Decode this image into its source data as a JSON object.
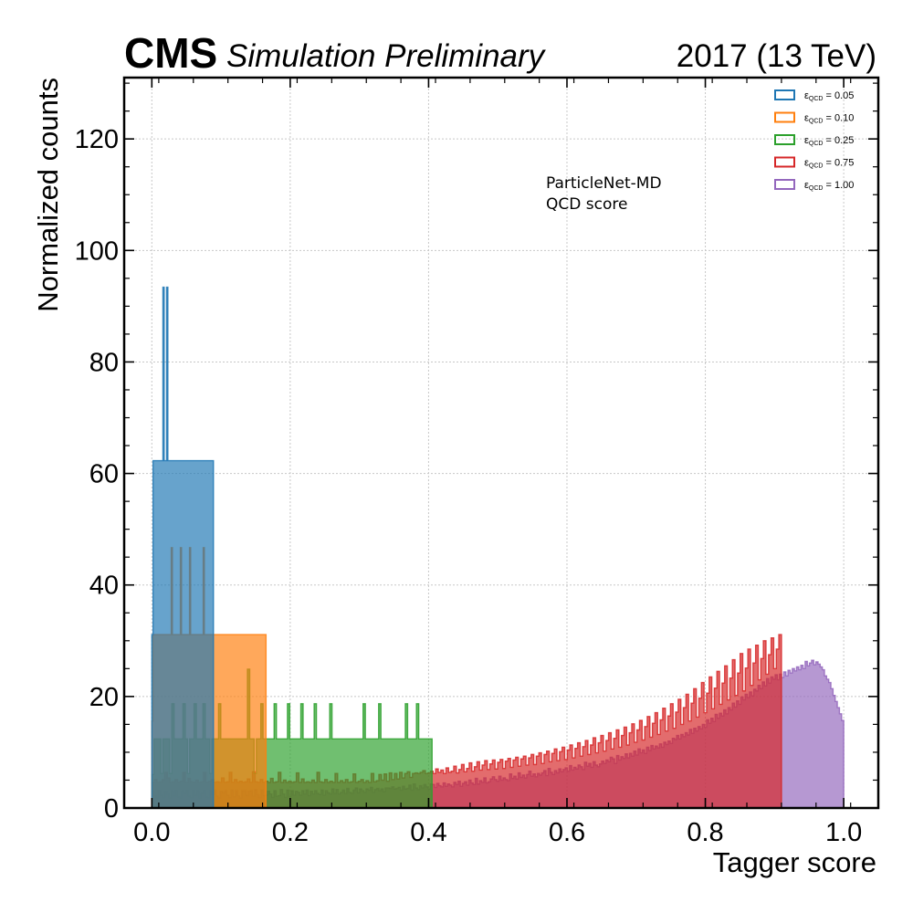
{
  "header": {
    "experiment": "CMS",
    "status": "Simulation Preliminary",
    "lumi": "2017 (13 TeV)"
  },
  "annotation": {
    "line1": "ParticleNet-MD",
    "line2": "QCD score"
  },
  "chart_data": {
    "type": "histogram",
    "xlabel": "Tagger score",
    "ylabel": "Normalized counts",
    "xlim": [
      -0.04,
      1.05
    ],
    "ylim": [
      0,
      131
    ],
    "xticks": [
      0.0,
      0.2,
      0.4,
      0.6,
      0.8,
      1.0
    ],
    "xtick_labels": [
      "0.0",
      "0.2",
      "0.4",
      "0.6",
      "0.8",
      "1.0"
    ],
    "yticks": [
      0,
      20,
      40,
      60,
      80,
      100,
      120
    ],
    "ytick_labels": [
      "0",
      "20",
      "40",
      "60",
      "80",
      "100",
      "120"
    ],
    "grid": true,
    "legend_position": "top-right",
    "bin_width": 0.0033,
    "series": [
      {
        "legend_symbol": "ε",
        "legend_sub": "QCD",
        "legend_value": " = 1.00",
        "color": "#9467bd",
        "x_range": [
          0.0,
          1.0
        ],
        "values": [
          3.0,
          2.2,
          1.8,
          3.2,
          2.3,
          1.9,
          3.0,
          2.5,
          1.8,
          3.1,
          2.2,
          3.2,
          2.0,
          1.8,
          3.1,
          2.6,
          3.2,
          2.1,
          1.9,
          3.2,
          2.3,
          3.1,
          1.8,
          2.6,
          3.2,
          2.0,
          1.9,
          3.1,
          2.4,
          3.2,
          2.1,
          1.8,
          3.0,
          2.7,
          3.1,
          2.3,
          1.9,
          3.2,
          2.0,
          3.1,
          2.2,
          1.8,
          3.1,
          3.1,
          2.2,
          3.0,
          3.1,
          2.1,
          3.3,
          2.4,
          1.9,
          3.2,
          2.2,
          2.3,
          3.0,
          2.5,
          1.9,
          3.1,
          2.1,
          2.2,
          3.3,
          2.5,
          1.9,
          3.2,
          2.1,
          3.1,
          2.3,
          3.0,
          2.8,
          2.3,
          3.1,
          2.5,
          3.2,
          2.2,
          3.0,
          2.5,
          3.1,
          2.6,
          2.4,
          3.2,
          2.3,
          3.1,
          2.7,
          2.5,
          3.4,
          2.6,
          3.3,
          2.5,
          2.8,
          3.2,
          2.6,
          3.5,
          2.8,
          2.6,
          3.2,
          3.6,
          2.7,
          3.4,
          3.1,
          2.8,
          3.4,
          3.2,
          3.7,
          2.8,
          3.3,
          3.5,
          3.1,
          3.4,
          2.9,
          3.6,
          3.6,
          3.5,
          3.8,
          3.4,
          3.5,
          3.7,
          3.2,
          3.9,
          3.4,
          3.5,
          4.1,
          3.2,
          4.3,
          3.6,
          3.3,
          4.0,
          3.6,
          4.2,
          3.8,
          3.4,
          4.3,
          4.2,
          3.7,
          4.4,
          4.0,
          3.8,
          4.5,
          3.9,
          4.3,
          4.1,
          3.8,
          4.6,
          4.2,
          4.8,
          3.9,
          4.4,
          4.7,
          4.1,
          5.0,
          4.5,
          4.2,
          5.3,
          4.3,
          4.9,
          4.6,
          5.4,
          4.5,
          4.7,
          5.2,
          5.6,
          5.1,
          4.8,
          5.7,
          5.0,
          5.4,
          5.1,
          4.9,
          6.1,
          5.3,
          5.7,
          5.2,
          6.3,
          5.5,
          5.9,
          5.4,
          6.0,
          6.6,
          5.7,
          6.1,
          5.6,
          6.2,
          5.9,
          6.3,
          6.7,
          5.8,
          7.1,
          6.4,
          6.0,
          6.7,
          6.3,
          7.0,
          6.5,
          6.9,
          7.2,
          6.6,
          7.6,
          6.8,
          7.3,
          7.0,
          7.7,
          7.4,
          6.9,
          8.2,
          7.5,
          8.0,
          7.3,
          8.3,
          7.7,
          7.4,
          7.9,
          8.4,
          8.0,
          8.6,
          8.3,
          9.1,
          8.8,
          8.0,
          9.4,
          8.6,
          9.2,
          8.9,
          9.7,
          9.0,
          9.8,
          9.3,
          10.2,
          9.5,
          10.6,
          9.9,
          10.4,
          9.8,
          10.9,
          10.3,
          11.2,
          10.6,
          11.1,
          10.8,
          11.5,
          10.9,
          11.8,
          11.4,
          12.0,
          11.6,
          12.5,
          12.3,
          13.0,
          12.4,
          13.2,
          12.8,
          13.5,
          13.1,
          14.1,
          13.4,
          14.3,
          13.8,
          14.6,
          14.2,
          15.0,
          14.5,
          15.8,
          15.2,
          16.1,
          15.5,
          16.8,
          16.1,
          17.0,
          16.5,
          17.6,
          16.9,
          18.0,
          17.6,
          18.8,
          18.1,
          19.2,
          18.6,
          19.9,
          19.4,
          20.4,
          19.8,
          20.8,
          20.1,
          21.3,
          21.0,
          22.0,
          21.4,
          22.6,
          21.9,
          23.2,
          22.4,
          23.5,
          23.1,
          23.9,
          23.0,
          24.0,
          23.4,
          24.4,
          23.7,
          24.7,
          24.2,
          25.0,
          24.6,
          25.3,
          24.8,
          25.6,
          25.0,
          26.3,
          25.5,
          26.0,
          26.5,
          25.7,
          26.2,
          25.8,
          25.3,
          24.8,
          23.7,
          23.1,
          22.5,
          21.4,
          20.2,
          19.1,
          18.0,
          16.9,
          15.7
        ]
      },
      {
        "legend_symbol": "ε",
        "legend_sub": "QCD",
        "legend_value": " = 0.75",
        "color": "#d62728",
        "x_range": [
          0.0,
          0.91
        ],
        "values": [
          4.6,
          5.1,
          4.6,
          4.7,
          5.1,
          6.4,
          5.4,
          4.6,
          4.7,
          5.1,
          4.6,
          4.8,
          6.4,
          4.6,
          5.3,
          4.7,
          4.6,
          5.0,
          4.6,
          4.7,
          6.4,
          4.6,
          4.8,
          5.1,
          4.6,
          4.7,
          4.6,
          5.4,
          4.6,
          4.7,
          6.4,
          4.6,
          5.1,
          4.6,
          4.8,
          4.6,
          4.7,
          5.2,
          4.6,
          6.5,
          4.7,
          4.6,
          5.1,
          4.6,
          4.8,
          4.6,
          5.3,
          4.6,
          4.7,
          6.4,
          4.6,
          5.0,
          4.6,
          4.8,
          4.6,
          4.7,
          6.3,
          4.6,
          5.2,
          4.6,
          4.7,
          4.6,
          5.0,
          4.6,
          6.4,
          4.7,
          4.6,
          5.1,
          4.6,
          4.8,
          4.6,
          6.2,
          4.6,
          4.9,
          4.6,
          5.1,
          4.6,
          4.7,
          6.1,
          4.6,
          4.8,
          5.1,
          4.6,
          4.9,
          4.6,
          6.2,
          4.7,
          4.9,
          6.0,
          5.0,
          6.1,
          4.8,
          6.3,
          5.1,
          6.2,
          5.2,
          6.4,
          5.4,
          6.2,
          6.5,
          5.5,
          6.2,
          6.3,
          6.2,
          6.4,
          6.7,
          6.2,
          6.3,
          6.6,
          6.2,
          7.0,
          6.4,
          6.8,
          6.2,
          7.2,
          6.4,
          6.6,
          7.5,
          6.3,
          6.9,
          7.8,
          6.5,
          7.1,
          8.1,
          6.6,
          7.4,
          8.3,
          6.8,
          7.7,
          8.5,
          6.9,
          7.9,
          8.6,
          7.0,
          8.2,
          8.7,
          7.1,
          8.4,
          8.9,
          7.3,
          8.6,
          9.1,
          7.5,
          8.8,
          9.3,
          7.7,
          9.0,
          9.6,
          7.8,
          9.3,
          9.9,
          8.0,
          9.6,
          10.2,
          8.3,
          9.8,
          10.6,
          8.5,
          10.1,
          10.9,
          8.7,
          10.4,
          11.3,
          9.0,
          10.7,
          11.7,
          9.3,
          11.0,
          12.1,
          9.6,
          11.3,
          12.6,
          9.9,
          11.7,
          13.0,
          10.2,
          12.1,
          13.5,
          10.6,
          12.5,
          14.0,
          10.9,
          13.0,
          14.5,
          11.3,
          13.5,
          15.1,
          11.8,
          14.0,
          15.7,
          12.2,
          14.6,
          16.4,
          12.7,
          15.2,
          17.1,
          13.2,
          15.8,
          17.9,
          13.8,
          16.5,
          18.7,
          14.3,
          17.2,
          19.5,
          15.0,
          18.0,
          20.4,
          15.6,
          18.8,
          21.4,
          16.3,
          19.7,
          22.5,
          17.1,
          20.6,
          23.5,
          17.8,
          21.5,
          24.5,
          18.6,
          22.4,
          25.5,
          19.4,
          23.3,
          26.6,
          20.2,
          24.2,
          27.7,
          21.0,
          25.1,
          28.5,
          22.0,
          26.0,
          29.2,
          23.0,
          26.8,
          30.0,
          24.0,
          27.5,
          30.5,
          25.0,
          28.5,
          31.1
        ]
      },
      {
        "legend_symbol": "ε",
        "legend_sub": "QCD",
        "legend_value": " = 0.25",
        "color": "#2ca02c",
        "x_range": [
          0.0,
          0.405
        ],
        "values": [
          6.0,
          12.4,
          12.4,
          12.4,
          6.2,
          12.4,
          12.4,
          12.4,
          6.2,
          18.7,
          12.4,
          12.4,
          12.4,
          12.4,
          18.7,
          12.4,
          6.2,
          12.4,
          12.4,
          18.7,
          12.4,
          12.4,
          12.4,
          18.7,
          12.4,
          12.4,
          6.2,
          12.4,
          12.4,
          12.4,
          18.7,
          12.4,
          12.4,
          12.4,
          12.4,
          12.4,
          12.4,
          12.4,
          12.4,
          12.4,
          12.4,
          12.4,
          12.4,
          24.9,
          12.4,
          12.4,
          6.2,
          12.4,
          12.4,
          18.7,
          12.4,
          12.4,
          12.4,
          12.4,
          12.4,
          18.7,
          12.4,
          12.4,
          12.4,
          12.4,
          12.4,
          18.7,
          12.4,
          12.4,
          12.4,
          12.4,
          12.4,
          18.7,
          12.4,
          12.4,
          12.4,
          12.4,
          12.4,
          18.7,
          12.4,
          12.4,
          12.4,
          12.4,
          12.4,
          12.4,
          18.7,
          12.4,
          12.4,
          12.4,
          12.4,
          12.4,
          12.4,
          12.4,
          12.4,
          12.4,
          12.4,
          12.4,
          12.4,
          12.4,
          12.4,
          18.7,
          12.4,
          12.4,
          12.4,
          12.4,
          12.4,
          12.4,
          18.7,
          12.4,
          12.4,
          12.4,
          12.4,
          12.4,
          12.4,
          12.4,
          12.4,
          12.4,
          12.4,
          12.4,
          18.7,
          12.4,
          12.4,
          12.4,
          12.4,
          18.7,
          12.4,
          12.4,
          12.4,
          12.4,
          12.4,
          12.4
        ]
      },
      {
        "legend_symbol": "ε",
        "legend_sub": "QCD",
        "legend_value": " = 0.10",
        "color": "#ff7f0e",
        "x_range": [
          0.0,
          0.165
        ],
        "values": [
          15.6,
          31.1,
          31.1,
          31.1,
          31.1,
          31.1,
          31.1,
          31.1,
          31.1,
          31.1,
          31.1,
          31.1,
          31.1,
          31.1,
          31.1,
          31.1,
          31.1,
          46.7,
          31.1,
          31.1,
          31.1,
          31.1,
          31.1,
          31.1,
          31.1,
          46.7,
          31.1,
          31.1,
          31.1,
          31.1,
          31.1,
          31.1,
          31.1,
          46.7,
          31.1,
          31.1,
          31.1,
          31.1,
          31.1,
          31.1,
          31.1,
          31.1,
          31.1,
          31.1,
          31.1,
          46.7,
          31.1,
          31.1,
          31.1,
          31.1,
          31.1,
          31.1,
          31.1,
          31.1,
          31.1,
          31.1,
          31.1,
          31.1,
          31.1,
          31.1,
          31.1,
          31.1,
          31.1,
          31.1,
          31.1,
          31.1,
          31.1,
          31.1,
          31.1,
          31.1,
          31.1,
          31.1,
          31.1,
          31.1,
          31.1,
          31.1,
          31.1,
          31.1,
          31.1,
          31.1,
          31.1,
          31.1,
          31.1,
          31.1,
          31.1,
          31.1,
          31.1,
          31.1,
          31.1,
          31.1,
          31.1,
          31.1,
          31.1,
          31.1,
          31.1,
          31.1,
          31.1,
          31.1,
          31.1,
          31.1
        ]
      },
      {
        "legend_symbol": "ε",
        "legend_sub": "QCD",
        "legend_value": " = 0.05",
        "color": "#1f77b4",
        "x_range": [
          0.0,
          0.089
        ],
        "values": [
          31.1,
          62.3,
          62.3,
          62.3,
          62.3,
          62.3,
          62.3,
          62.3,
          62.3,
          93.4,
          62.3,
          62.3,
          93.4,
          62.3,
          62.3,
          62.3,
          62.3,
          62.3,
          62.3,
          62.3,
          62.3,
          62.3,
          62.3,
          62.3,
          62.3,
          62.3,
          62.3,
          62.3,
          62.3,
          62.3,
          62.3,
          62.3,
          62.3,
          62.3,
          62.3,
          62.3,
          62.3,
          62.3,
          62.3,
          62.3,
          62.3,
          62.3,
          62.3,
          62.3,
          62.3,
          62.3,
          62.3,
          62.3,
          62.3,
          62.3
        ]
      }
    ]
  }
}
